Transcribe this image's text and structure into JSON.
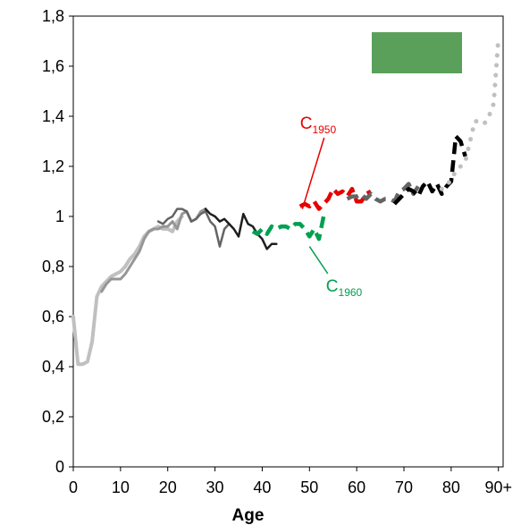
{
  "chart_data": {
    "type": "line",
    "title": "",
    "xlabel": "Age",
    "ylabel": "",
    "xlim": [
      0,
      91
    ],
    "ylim": [
      0,
      1.8
    ],
    "x_ticks": [
      {
        "value": 0,
        "label": "0"
      },
      {
        "value": 10,
        "label": "10"
      },
      {
        "value": 20,
        "label": "20"
      },
      {
        "value": 30,
        "label": "30"
      },
      {
        "value": 40,
        "label": "40"
      },
      {
        "value": 50,
        "label": "50"
      },
      {
        "value": 60,
        "label": "60"
      },
      {
        "value": 70,
        "label": "70"
      },
      {
        "value": 80,
        "label": "80"
      },
      {
        "value": 90,
        "label": "90+"
      }
    ],
    "y_ticks": [
      {
        "value": 0,
        "label": "0"
      },
      {
        "value": 0.2,
        "label": "0,2"
      },
      {
        "value": 0.4,
        "label": "0,4"
      },
      {
        "value": 0.6,
        "label": "0,6"
      },
      {
        "value": 0.8,
        "label": "0,8"
      },
      {
        "value": 1.0,
        "label": "1"
      },
      {
        "value": 1.2,
        "label": "1,2"
      },
      {
        "value": 1.4,
        "label": "1,4"
      },
      {
        "value": 1.6,
        "label": "1,6"
      },
      {
        "value": 1.8,
        "label": "1,8"
      }
    ],
    "grid": false,
    "legend": {
      "placement": "top-right",
      "swatch_color": "#5aa05a"
    },
    "series": [
      {
        "color": "#c0c0c0",
        "style": "solid",
        "width": 4,
        "x": [
          0,
          1,
          2,
          3,
          4,
          5,
          6,
          7,
          8,
          9,
          10,
          11,
          12,
          13,
          14,
          15,
          16,
          17,
          18,
          19,
          20,
          21,
          22,
          23
        ],
        "y": [
          0.6,
          0.41,
          0.41,
          0.42,
          0.5,
          0.68,
          0.72,
          0.74,
          0.76,
          0.77,
          0.78,
          0.8,
          0.83,
          0.85,
          0.88,
          0.92,
          0.94,
          0.95,
          0.96,
          0.95,
          0.95,
          0.94,
          0.98,
          1.0
        ]
      },
      {
        "color": "#969696",
        "style": "solid",
        "width": 3,
        "x": [
          6,
          7,
          8,
          9,
          10,
          11,
          12,
          13,
          14,
          15,
          16,
          17,
          18,
          19,
          20,
          21,
          22,
          23,
          24,
          25,
          26,
          27,
          28
        ],
        "y": [
          0.7,
          0.73,
          0.75,
          0.75,
          0.75,
          0.77,
          0.8,
          0.83,
          0.86,
          0.91,
          0.94,
          0.95,
          0.95,
          0.96,
          0.96,
          0.98,
          0.95,
          1.01,
          1.02,
          0.98,
          0.99,
          1.02,
          1.03
        ]
      },
      {
        "color": "#646464",
        "style": "solid",
        "width": 2.5,
        "x": [
          18,
          19,
          20,
          21,
          22,
          23,
          24,
          25,
          26,
          27,
          28,
          29,
          30,
          31,
          32,
          33
        ],
        "y": [
          0.98,
          0.97,
          0.99,
          1.0,
          1.03,
          1.03,
          1.02,
          0.98,
          0.99,
          1.01,
          1.02,
          0.98,
          0.96,
          0.88,
          0.95,
          0.97
        ]
      },
      {
        "color": "#1e1e1e",
        "style": "solid",
        "width": 2.5,
        "x": [
          28,
          29,
          30,
          31,
          32,
          33,
          34,
          35,
          36,
          37,
          38,
          39,
          40,
          41,
          42,
          43
        ],
        "y": [
          1.03,
          1.01,
          1.0,
          0.98,
          0.99,
          0.97,
          0.95,
          0.92,
          1.01,
          0.97,
          0.96,
          0.93,
          0.91,
          0.87,
          0.89,
          0.89
        ]
      },
      {
        "color": "#00a050",
        "style": "dashed",
        "width": 4.5,
        "x": [
          38,
          39,
          40,
          41,
          42,
          43,
          44,
          45,
          46,
          47,
          48,
          49,
          50,
          51,
          52,
          53
        ],
        "y": [
          0.94,
          0.93,
          0.95,
          0.93,
          0.96,
          0.95,
          0.96,
          0.96,
          0.95,
          0.97,
          0.97,
          0.95,
          0.92,
          0.95,
          0.91,
          1.0
        ]
      },
      {
        "color": "#e60000",
        "style": "dashed",
        "width": 4.5,
        "x": [
          48,
          49,
          50,
          51,
          52,
          53,
          54,
          55,
          56,
          57,
          58,
          59,
          60,
          61,
          62,
          63
        ],
        "y": [
          1.04,
          1.05,
          1.04,
          1.06,
          1.03,
          1.05,
          1.07,
          1.11,
          1.09,
          1.1,
          1.08,
          1.11,
          1.06,
          1.06,
          1.09,
          1.1
        ]
      },
      {
        "color": "#646464",
        "style": "dashed",
        "width": 4.5,
        "x": [
          58,
          59,
          60,
          61,
          62,
          63,
          64,
          65,
          66,
          67,
          68,
          69,
          70,
          71,
          72,
          73
        ],
        "y": [
          1.07,
          1.08,
          1.08,
          1.09,
          1.07,
          1.09,
          1.07,
          1.06,
          1.07,
          1.07,
          1.06,
          1.1,
          1.11,
          1.13,
          1.09,
          1.12
        ]
      },
      {
        "color": "#000000",
        "style": "dashed",
        "width": 4.5,
        "x": [
          68,
          69,
          70,
          71,
          72,
          73,
          74,
          75,
          76,
          77,
          78,
          79,
          80,
          81,
          82,
          83
        ],
        "y": [
          1.05,
          1.07,
          1.09,
          1.11,
          1.1,
          1.08,
          1.12,
          1.14,
          1.1,
          1.13,
          1.09,
          1.12,
          1.14,
          1.32,
          1.3,
          1.24
        ]
      },
      {
        "color": "#c0c0c0",
        "style": "dotted",
        "width": 5,
        "x": [
          78,
          79,
          80,
          81,
          82,
          83,
          84,
          85,
          86,
          87,
          88,
          89,
          90
        ],
        "y": [
          1.11,
          1.12,
          1.15,
          1.18,
          1.2,
          1.22,
          1.3,
          1.38,
          1.38,
          1.37,
          1.4,
          1.45,
          1.71
        ]
      }
    ],
    "annotations": [
      {
        "main": "C",
        "sub": "1950",
        "color": "#e60000",
        "x": 48,
        "y": 1.35,
        "arrow_to": [
          48.5,
          1.03
        ]
      },
      {
        "main": "C",
        "sub": "1960",
        "color": "#00a050",
        "x": 53.5,
        "y": 0.7,
        "arrow_to": [
          50,
          0.88
        ]
      }
    ]
  }
}
